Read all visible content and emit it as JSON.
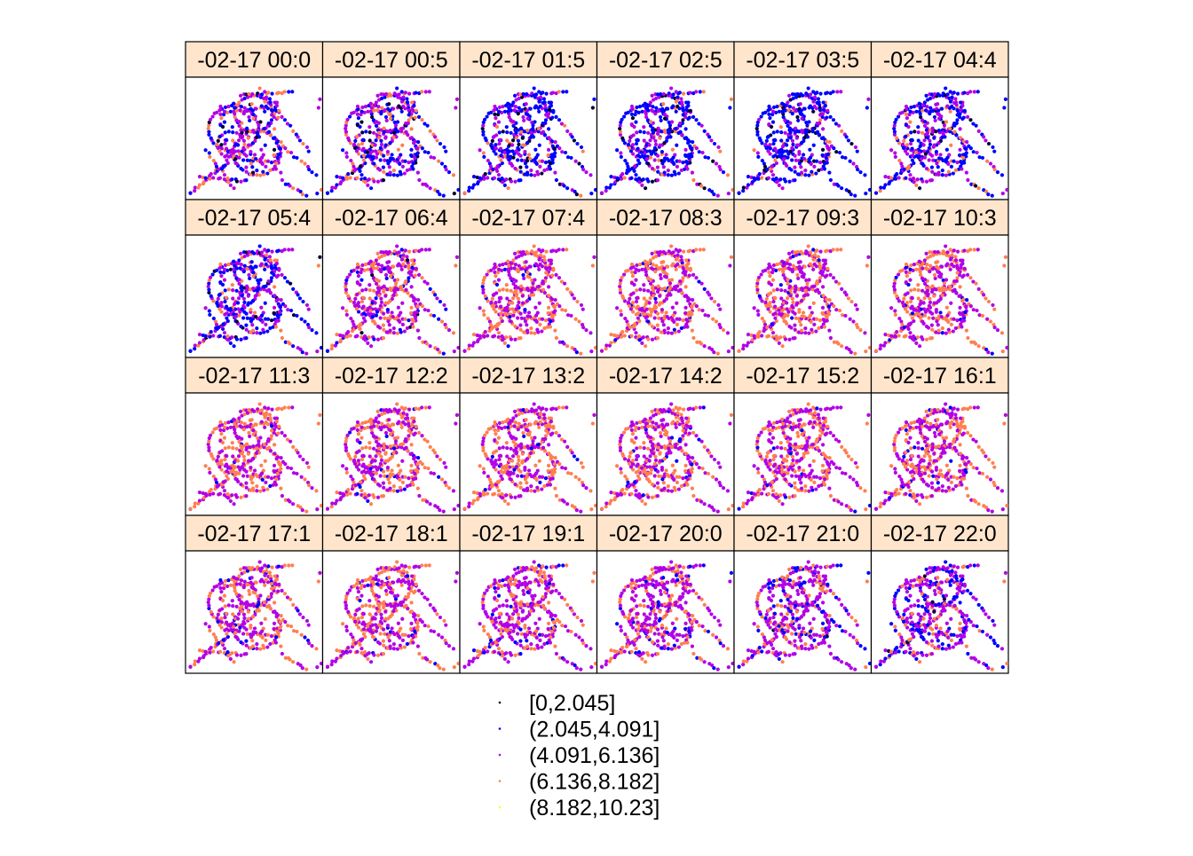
{
  "chart_data": {
    "type": "scatter",
    "title": "",
    "xlabel": "",
    "ylabel": "",
    "layout": {
      "rows": 4,
      "cols": 6
    },
    "panels": [
      {
        "label": "-02-17 00:0",
        "mix": [
          0.03,
          0.3,
          0.45,
          0.22,
          0.0
        ]
      },
      {
        "label": "-02-17 00:5",
        "mix": [
          0.05,
          0.38,
          0.4,
          0.17,
          0.0
        ]
      },
      {
        "label": "-02-17 01:5",
        "mix": [
          0.09,
          0.5,
          0.31,
          0.1,
          0.0
        ]
      },
      {
        "label": "-02-17 02:5",
        "mix": [
          0.1,
          0.55,
          0.28,
          0.07,
          0.0
        ]
      },
      {
        "label": "-02-17 03:5",
        "mix": [
          0.12,
          0.56,
          0.26,
          0.06,
          0.0
        ]
      },
      {
        "label": "-02-17 04:4",
        "mix": [
          0.07,
          0.5,
          0.33,
          0.1,
          0.0
        ]
      },
      {
        "label": "-02-17 05:4",
        "mix": [
          0.03,
          0.45,
          0.4,
          0.12,
          0.0
        ]
      },
      {
        "label": "-02-17 06:4",
        "mix": [
          0.01,
          0.12,
          0.55,
          0.32,
          0.0
        ]
      },
      {
        "label": "-02-17 07:4",
        "mix": [
          0.0,
          0.04,
          0.5,
          0.46,
          0.0
        ]
      },
      {
        "label": "-02-17 08:3",
        "mix": [
          0.0,
          0.04,
          0.5,
          0.46,
          0.0
        ]
      },
      {
        "label": "-02-17 09:3",
        "mix": [
          0.0,
          0.04,
          0.52,
          0.44,
          0.0
        ]
      },
      {
        "label": "-02-17 10:3",
        "mix": [
          0.0,
          0.05,
          0.52,
          0.43,
          0.0
        ]
      },
      {
        "label": "-02-17 11:3",
        "mix": [
          0.0,
          0.03,
          0.5,
          0.47,
          0.0
        ]
      },
      {
        "label": "-02-17 12:2",
        "mix": [
          0.0,
          0.05,
          0.55,
          0.4,
          0.0
        ]
      },
      {
        "label": "-02-17 13:2",
        "mix": [
          0.0,
          0.04,
          0.5,
          0.46,
          0.0
        ]
      },
      {
        "label": "-02-17 14:2",
        "mix": [
          0.0,
          0.05,
          0.52,
          0.43,
          0.0
        ]
      },
      {
        "label": "-02-17 15:2",
        "mix": [
          0.0,
          0.06,
          0.54,
          0.4,
          0.0
        ]
      },
      {
        "label": "-02-17 16:1",
        "mix": [
          0.0,
          0.05,
          0.52,
          0.43,
          0.0
        ]
      },
      {
        "label": "-02-17 17:1",
        "mix": [
          0.0,
          0.06,
          0.52,
          0.42,
          0.0
        ]
      },
      {
        "label": "-02-17 18:1",
        "mix": [
          0.0,
          0.06,
          0.54,
          0.4,
          0.0
        ]
      },
      {
        "label": "-02-17 19:1",
        "mix": [
          0.0,
          0.08,
          0.58,
          0.34,
          0.0
        ]
      },
      {
        "label": "-02-17 20:0",
        "mix": [
          0.0,
          0.1,
          0.6,
          0.3,
          0.0
        ]
      },
      {
        "label": "-02-17 21:0",
        "mix": [
          0.01,
          0.18,
          0.58,
          0.23,
          0.0
        ]
      },
      {
        "label": "-02-17 22:0",
        "mix": [
          0.02,
          0.3,
          0.5,
          0.18,
          0.0
        ]
      }
    ],
    "legend": {
      "placement": "bottom",
      "entries": [
        {
          "label": "[0,2.045]",
          "color": "#000033"
        },
        {
          "label": "(2.045,4.091]",
          "color": "#0000ff"
        },
        {
          "label": "(4.091,6.136]",
          "color": "#b300e6"
        },
        {
          "label": "(6.136,8.182]",
          "color": "#ff7f50"
        },
        {
          "label": "(8.182,10.23]",
          "color": "#ffff00"
        }
      ]
    },
    "strip_color": "#ffe5cc",
    "grid": false
  }
}
